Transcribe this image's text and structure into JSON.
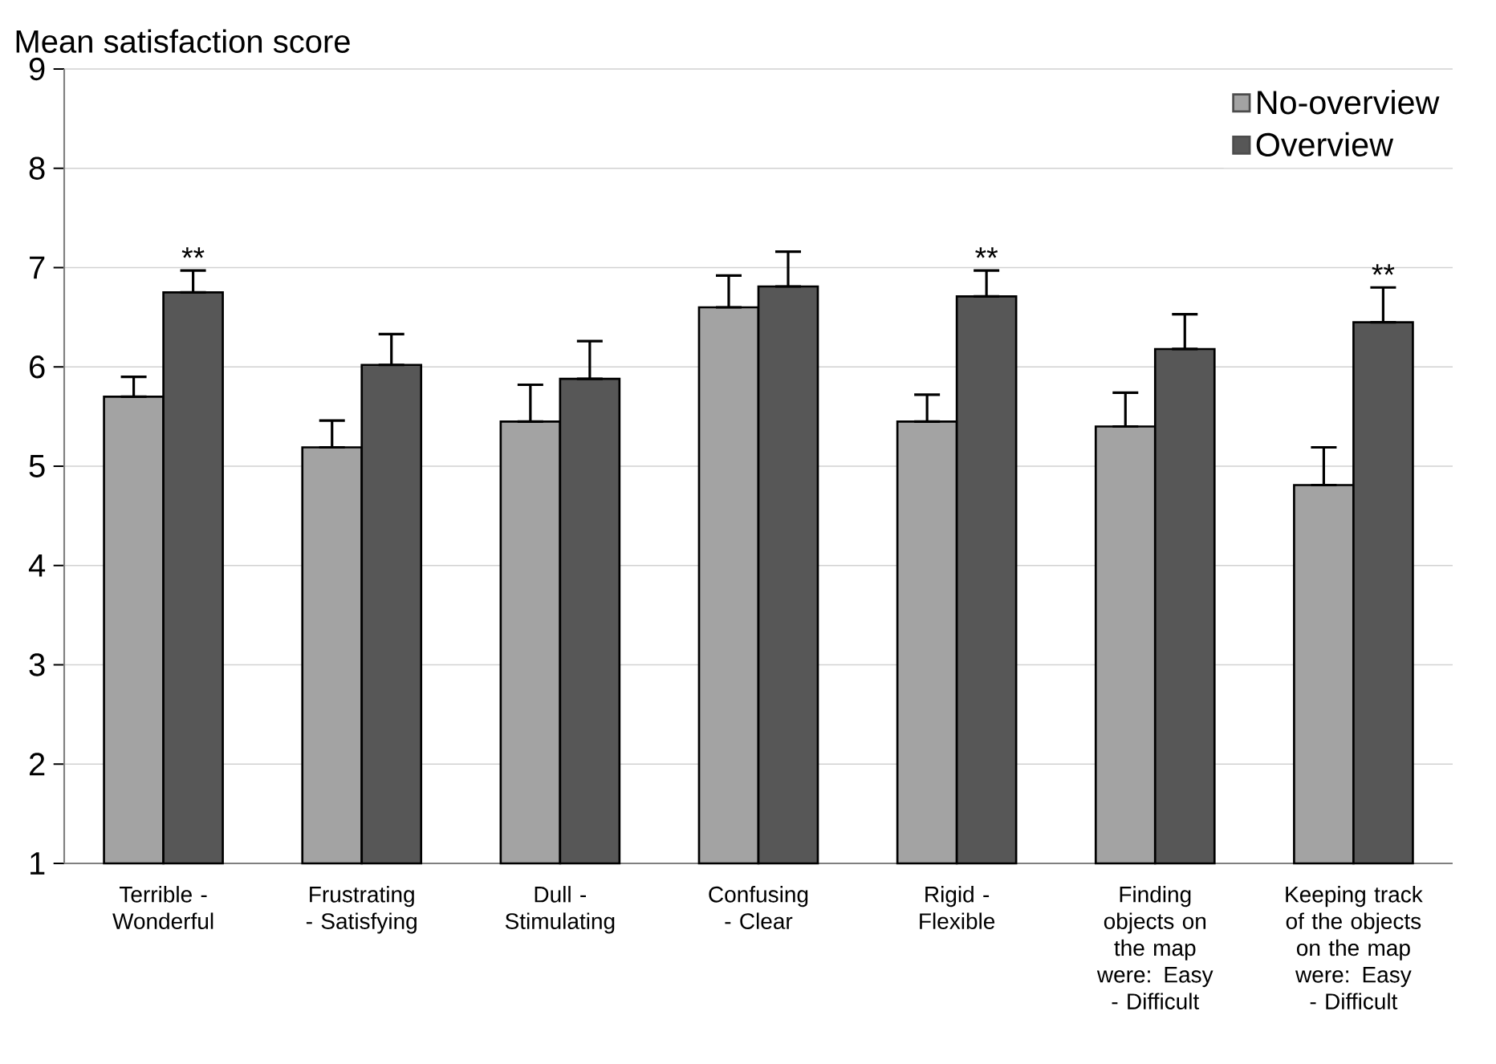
{
  "chart_data": {
    "type": "bar",
    "ylabel": "Mean satisfaction score",
    "categories": [
      "Terrible - Wonderful",
      "Frustrating - Satisfying",
      "Dull - Stimulating",
      "Confusing - Clear",
      "Rigid - Flexible",
      "Finding objects on the map were: Easy - Difficult",
      "Keeping track of the objects on the map were: Easy - Difficult"
    ],
    "series": [
      {
        "name": "No-overview",
        "color": "#a3a3a3",
        "values": [
          5.7,
          5.19,
          5.45,
          6.6,
          5.45,
          5.4,
          4.81
        ],
        "errors": [
          [
            5.7,
            5.9
          ],
          [
            5.19,
            5.46
          ],
          [
            5.45,
            5.82
          ],
          [
            6.6,
            6.92
          ],
          [
            5.45,
            5.72
          ],
          [
            5.4,
            5.74
          ],
          [
            4.81,
            5.19
          ]
        ]
      },
      {
        "name": "Overview",
        "color": "#575757",
        "values": [
          6.75,
          6.02,
          5.88,
          6.81,
          6.71,
          6.18,
          6.45
        ],
        "errors": [
          [
            6.75,
            6.97
          ],
          [
            6.02,
            6.33
          ],
          [
            5.88,
            6.26
          ],
          [
            6.81,
            7.16
          ],
          [
            6.71,
            6.97
          ],
          [
            6.18,
            6.53
          ],
          [
            6.45,
            6.8
          ]
        ]
      }
    ],
    "ylim": [
      1,
      9
    ],
    "yticks": [
      1,
      2,
      3,
      4,
      5,
      6,
      7,
      8,
      9
    ],
    "grid": "y",
    "legend": "top right",
    "annotations": [
      {
        "text": "**",
        "x": "Terrible - Wonderful",
        "y": 6.75
      },
      {
        "text": "**",
        "x": "Rigid - Flexible",
        "y": 6.71
      },
      {
        "text": "**",
        "x": "Keeping track of the objects on the map were: Easy - Difficult",
        "y": 6.45
      }
    ]
  }
}
